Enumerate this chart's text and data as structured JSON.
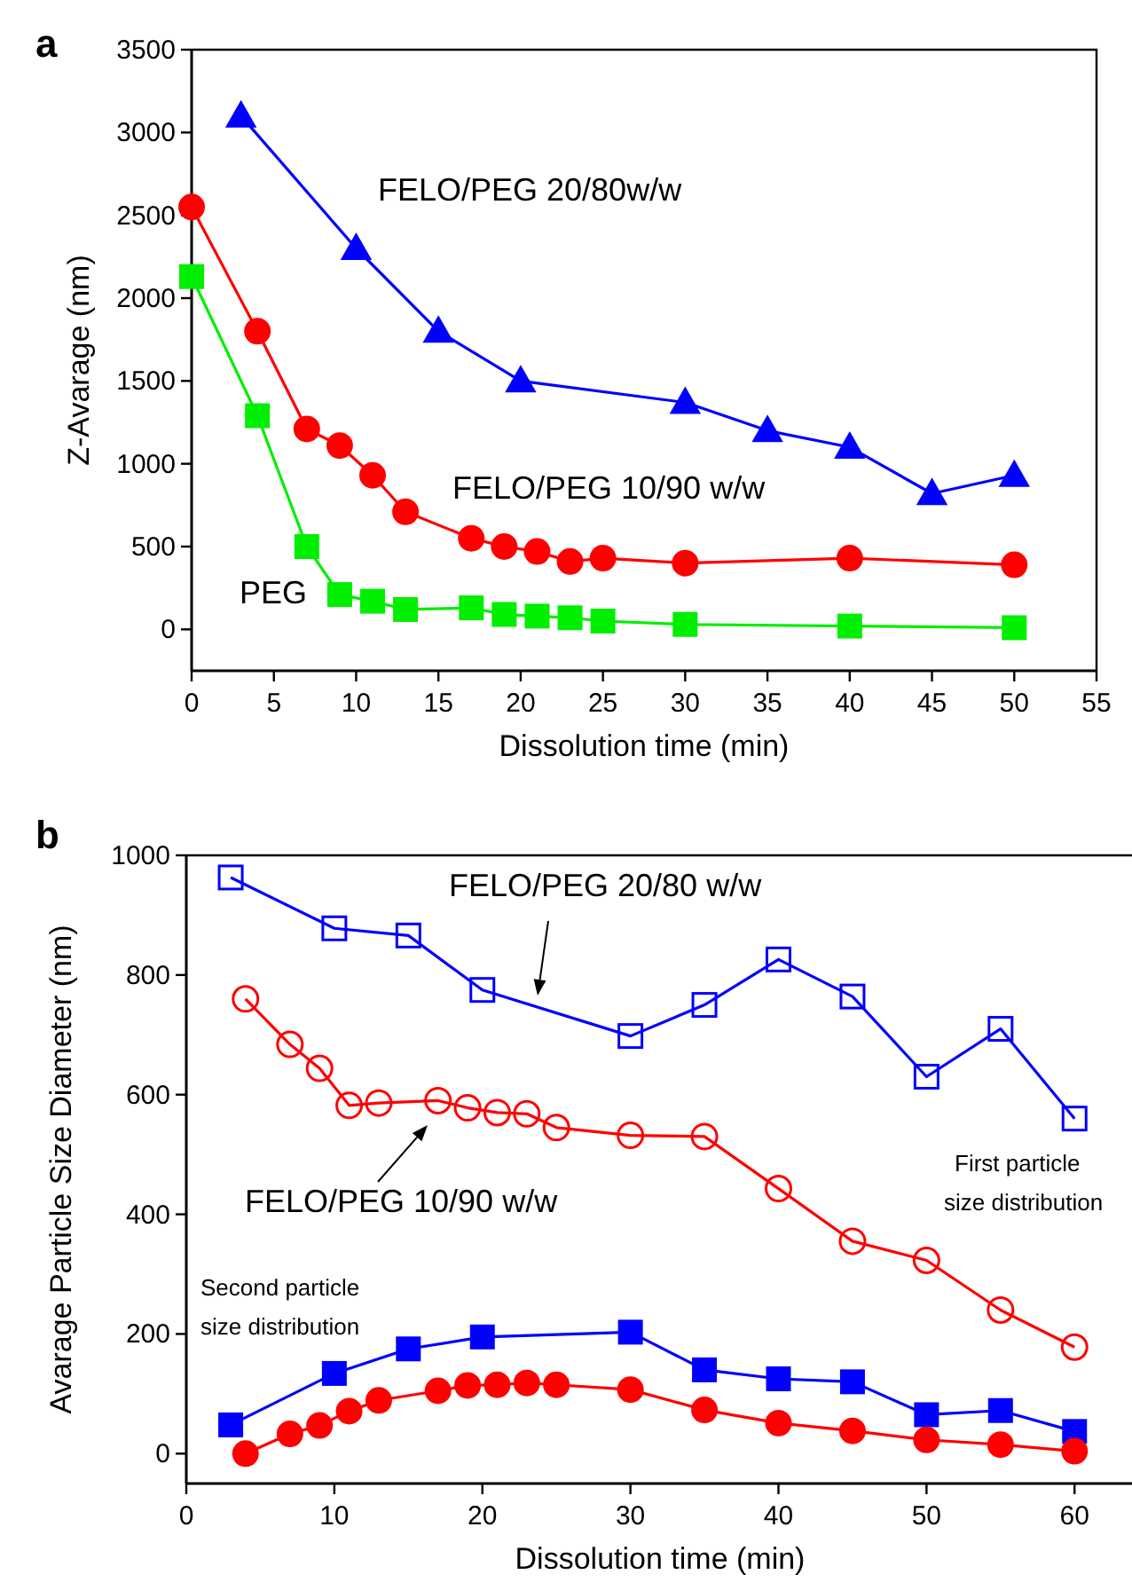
{
  "chart_data": [
    {
      "type": "line",
      "title": "a",
      "xlabel": "Dissolution time (min)",
      "ylabel": "Z-Avarage (nm)",
      "xlim": [
        0,
        55
      ],
      "ylim": [
        -250,
        3500
      ],
      "xticks": [
        0,
        5,
        10,
        15,
        20,
        25,
        30,
        35,
        40,
        45,
        50,
        55
      ],
      "yticks": [
        0,
        500,
        1000,
        1500,
        2000,
        2500,
        3000,
        3500
      ],
      "grid": false,
      "series": [
        {
          "name": "FELO/PEG 20/80w/w",
          "color": "#0000ff",
          "marker": "triangle",
          "x": [
            3,
            10,
            15,
            20,
            30,
            35,
            40,
            45,
            50
          ],
          "values": [
            3100,
            2300,
            1800,
            1500,
            1370,
            1200,
            1100,
            820,
            930
          ]
        },
        {
          "name": "FELO/PEG 10/90 w/w",
          "color": "#ff0000",
          "marker": "circle",
          "x": [
            0,
            4,
            7,
            9,
            11,
            13,
            17,
            19,
            21,
            23,
            25,
            30,
            40,
            50
          ],
          "values": [
            2550,
            1800,
            1210,
            1110,
            930,
            710,
            550,
            500,
            470,
            410,
            430,
            400,
            430,
            390
          ]
        },
        {
          "name": "PEG",
          "color": "#00ee00",
          "marker": "square",
          "x": [
            0,
            4,
            7,
            9,
            11,
            13,
            17,
            19,
            21,
            23,
            25,
            30,
            40,
            50
          ],
          "values": [
            2130,
            1290,
            500,
            210,
            170,
            120,
            130,
            90,
            80,
            70,
            50,
            30,
            20,
            10
          ]
        }
      ]
    },
    {
      "type": "line",
      "title": "b",
      "xlabel": "Dissolution time (min)",
      "ylabel": "Avarage Particle Size Diameter (nm)",
      "xlim": [
        0,
        64
      ],
      "ylim": [
        -50,
        1000
      ],
      "xticks": [
        0,
        10,
        20,
        30,
        40,
        50,
        60
      ],
      "yticks": [
        0,
        200,
        400,
        600,
        800,
        1000
      ],
      "grid": false,
      "annotations": [
        "First particle size distribution",
        "Second particle size distribution"
      ],
      "series": [
        {
          "name": "FELO/PEG 20/80 w/w",
          "color": "#0000ff",
          "marker": "square",
          "x": [
            3,
            10,
            15,
            20,
            30,
            35,
            40,
            45,
            50,
            55,
            60
          ],
          "values": [
            963,
            878,
            866,
            775,
            698,
            750,
            826,
            764,
            630,
            710,
            560
          ]
        },
        {
          "name": "FELO/PEG 10/90 w/w",
          "color": "#ff0000",
          "marker": "circle",
          "x": [
            4,
            7,
            9,
            11,
            13,
            17,
            19,
            21,
            23,
            25,
            30,
            35,
            40,
            45,
            50,
            55,
            60
          ],
          "values": [
            760,
            684,
            644,
            582,
            586,
            590,
            578,
            570,
            568,
            545,
            532,
            530,
            443,
            355,
            323,
            240,
            178
          ]
        },
        {
          "color": "#0000ff",
          "marker": "square",
          "x": [
            3,
            10,
            15,
            20,
            30,
            35,
            40,
            45,
            50,
            55,
            60
          ],
          "values": [
            48,
            134,
            175,
            195,
            203,
            140,
            125,
            120,
            65,
            72,
            37
          ]
        },
        {
          "color": "#ff0000",
          "marker": "circle",
          "x": [
            4,
            7,
            9,
            11,
            13,
            17,
            19,
            21,
            23,
            25,
            30,
            35,
            40,
            45,
            50,
            55,
            60
          ],
          "values": [
            0,
            33,
            47,
            71,
            89,
            105,
            114,
            115,
            118,
            115,
            107,
            73,
            51,
            38,
            23,
            15,
            4
          ]
        }
      ]
    }
  ]
}
